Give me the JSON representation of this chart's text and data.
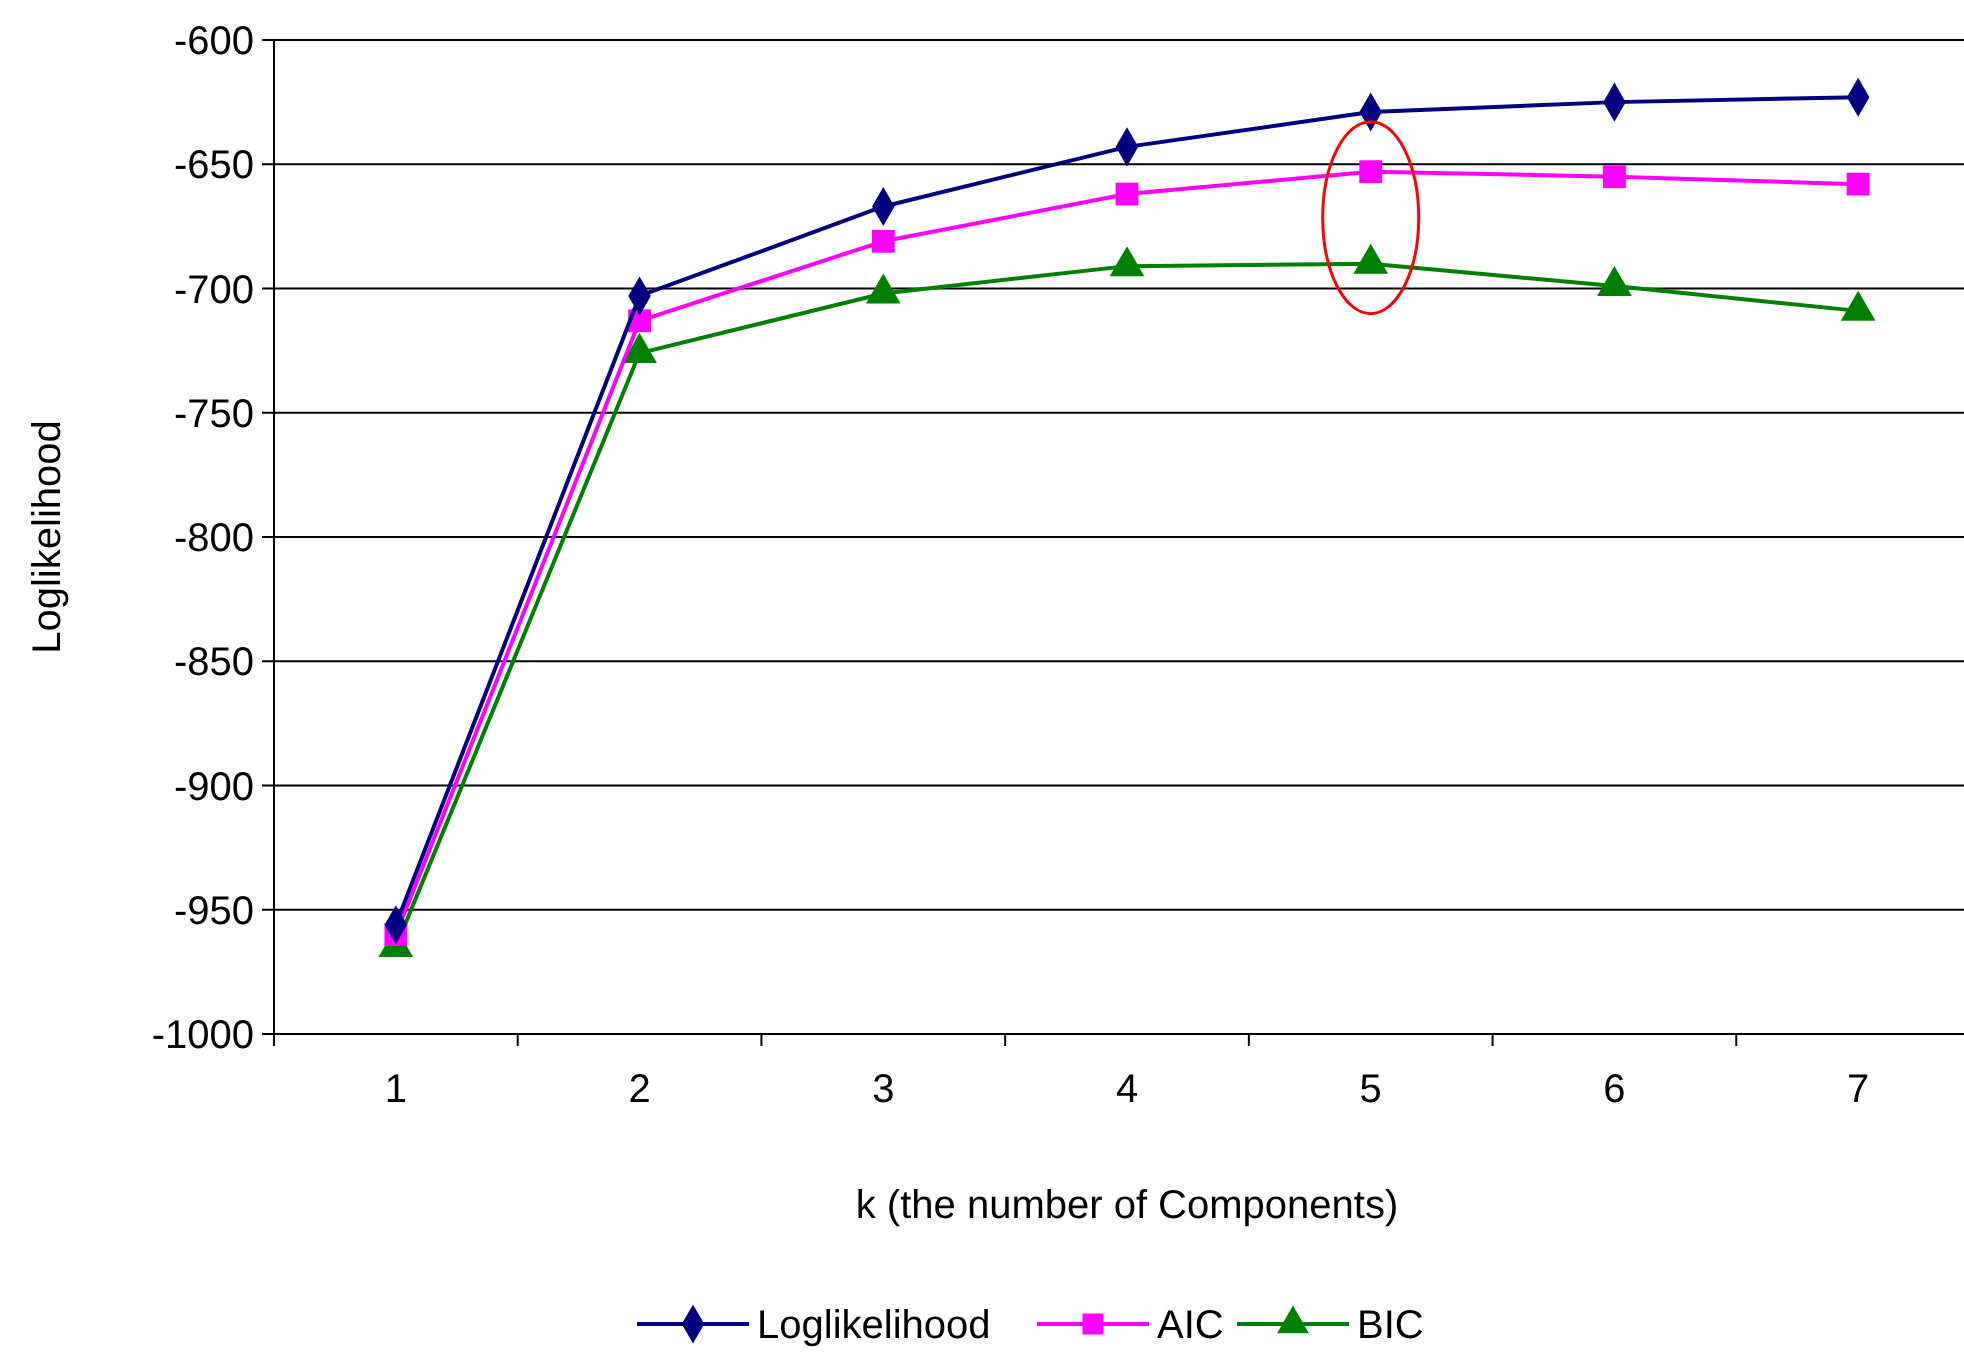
{
  "chart_data": {
    "type": "line",
    "xlabel": "k (the number of Components)",
    "ylabel": "Loglikelihood",
    "categories": [
      "1",
      "2",
      "3",
      "4",
      "5",
      "6",
      "7"
    ],
    "series": [
      {
        "name": "Loglikelihood",
        "color": "#000080",
        "marker": "diamond",
        "values": [
          -956,
          -703,
          -667,
          -643,
          -629,
          -625,
          -623
        ]
      },
      {
        "name": "AIC",
        "color": "#ff00ff",
        "marker": "square",
        "values": [
          -960,
          -713,
          -681,
          -662,
          -653,
          -655,
          -658
        ]
      },
      {
        "name": "BIC",
        "color": "#008000",
        "marker": "triangle",
        "values": [
          -965,
          -726,
          -702,
          -691,
          -690,
          -699,
          -709
        ]
      }
    ],
    "ylim": [
      -1000,
      -600
    ],
    "yticks": [
      -1000,
      -950,
      -900,
      -850,
      -800,
      -750,
      -700,
      -650,
      -600
    ],
    "grid": "y",
    "legend": "bottom"
  }
}
